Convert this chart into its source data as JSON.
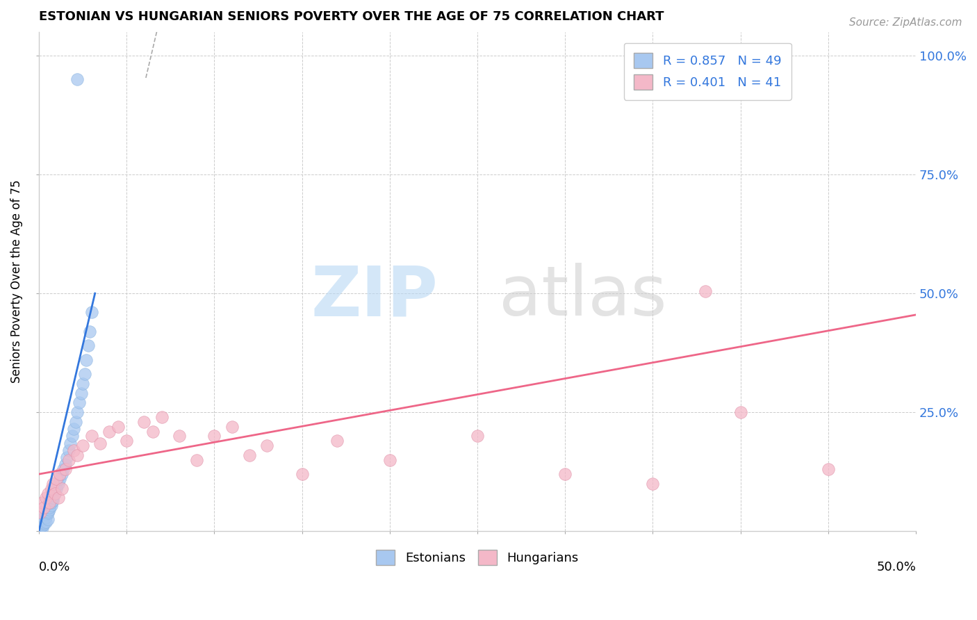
{
  "title": "ESTONIAN VS HUNGARIAN SENIORS POVERTY OVER THE AGE OF 75 CORRELATION CHART",
  "source": "Source: ZipAtlas.com",
  "ylabel": "Seniors Poverty Over the Age of 75",
  "xmin": 0.0,
  "xmax": 0.5,
  "ymin": 0.0,
  "ymax": 1.05,
  "estonian_color": "#a8c8f0",
  "hungarian_color": "#f4b8c8",
  "estonian_line_color": "#3377dd",
  "hungarian_line_color": "#ee6688",
  "estonian_points": [
    [
      0.001,
      0.005
    ],
    [
      0.001,
      0.008
    ],
    [
      0.001,
      0.01
    ],
    [
      0.001,
      0.012
    ],
    [
      0.001,
      0.015
    ],
    [
      0.002,
      0.008
    ],
    [
      0.002,
      0.012
    ],
    [
      0.002,
      0.018
    ],
    [
      0.002,
      0.02
    ],
    [
      0.002,
      0.022
    ],
    [
      0.003,
      0.015
    ],
    [
      0.003,
      0.018
    ],
    [
      0.003,
      0.025
    ],
    [
      0.003,
      0.028
    ],
    [
      0.004,
      0.02
    ],
    [
      0.004,
      0.03
    ],
    [
      0.004,
      0.035
    ],
    [
      0.005,
      0.025
    ],
    [
      0.005,
      0.038
    ],
    [
      0.005,
      0.042
    ],
    [
      0.006,
      0.045
    ],
    [
      0.006,
      0.05
    ],
    [
      0.007,
      0.055
    ],
    [
      0.007,
      0.06
    ],
    [
      0.008,
      0.065
    ],
    [
      0.008,
      0.07
    ],
    [
      0.009,
      0.08
    ],
    [
      0.01,
      0.09
    ],
    [
      0.011,
      0.1
    ],
    [
      0.012,
      0.11
    ],
    [
      0.013,
      0.12
    ],
    [
      0.014,
      0.13
    ],
    [
      0.015,
      0.14
    ],
    [
      0.016,
      0.155
    ],
    [
      0.017,
      0.17
    ],
    [
      0.018,
      0.185
    ],
    [
      0.019,
      0.2
    ],
    [
      0.02,
      0.215
    ],
    [
      0.021,
      0.23
    ],
    [
      0.022,
      0.25
    ],
    [
      0.023,
      0.27
    ],
    [
      0.024,
      0.29
    ],
    [
      0.025,
      0.31
    ],
    [
      0.026,
      0.33
    ],
    [
      0.027,
      0.36
    ],
    [
      0.028,
      0.39
    ],
    [
      0.029,
      0.42
    ],
    [
      0.03,
      0.46
    ],
    [
      0.022,
      0.95
    ]
  ],
  "hungarian_points": [
    [
      0.001,
      0.04
    ],
    [
      0.002,
      0.06
    ],
    [
      0.003,
      0.05
    ],
    [
      0.004,
      0.07
    ],
    [
      0.005,
      0.08
    ],
    [
      0.006,
      0.06
    ],
    [
      0.007,
      0.09
    ],
    [
      0.008,
      0.1
    ],
    [
      0.009,
      0.08
    ],
    [
      0.01,
      0.11
    ],
    [
      0.011,
      0.07
    ],
    [
      0.012,
      0.12
    ],
    [
      0.013,
      0.09
    ],
    [
      0.015,
      0.13
    ],
    [
      0.017,
      0.15
    ],
    [
      0.02,
      0.17
    ],
    [
      0.022,
      0.16
    ],
    [
      0.025,
      0.18
    ],
    [
      0.03,
      0.2
    ],
    [
      0.035,
      0.185
    ],
    [
      0.04,
      0.21
    ],
    [
      0.045,
      0.22
    ],
    [
      0.05,
      0.19
    ],
    [
      0.06,
      0.23
    ],
    [
      0.065,
      0.21
    ],
    [
      0.07,
      0.24
    ],
    [
      0.08,
      0.2
    ],
    [
      0.09,
      0.15
    ],
    [
      0.1,
      0.2
    ],
    [
      0.11,
      0.22
    ],
    [
      0.12,
      0.16
    ],
    [
      0.13,
      0.18
    ],
    [
      0.15,
      0.12
    ],
    [
      0.17,
      0.19
    ],
    [
      0.2,
      0.15
    ],
    [
      0.25,
      0.2
    ],
    [
      0.3,
      0.12
    ],
    [
      0.35,
      0.1
    ],
    [
      0.38,
      0.505
    ],
    [
      0.4,
      0.25
    ],
    [
      0.45,
      0.13
    ]
  ],
  "est_line_x0": 0.0,
  "est_line_x1": 0.032,
  "est_line_y0": 0.0,
  "est_line_y1": 0.5,
  "hun_line_x0": 0.0,
  "hun_line_x1": 0.5,
  "hun_line_y0": 0.12,
  "hun_line_y1": 0.455
}
